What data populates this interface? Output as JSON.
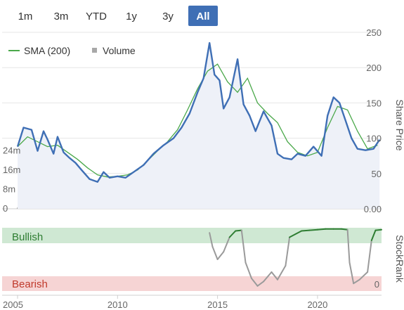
{
  "range_selector": {
    "buttons": [
      "1m",
      "3m",
      "YTD",
      "1y",
      "3y",
      "All"
    ],
    "active": "All"
  },
  "colors": {
    "price": "#3f6fb5",
    "sma": "#4aa84a",
    "volume": "#a8a8a8",
    "active_button": "#3f6fb5",
    "bullish_band": "#cfe8d3",
    "bearish_band": "#f6d4d4",
    "bullish_text": "#2e7d32",
    "bearish_text": "#c0392b"
  },
  "legend": {
    "sma_label": "SMA (200)",
    "volume_label": "Volume"
  },
  "stockrank": {
    "bullish_label": "Bullish",
    "bearish_label": "Bearish",
    "right_label": "0",
    "axis_title": "StockRank"
  },
  "chart_data": [
    {
      "type": "line",
      "title": "",
      "ylabel": "Share Price",
      "x_ticks": [
        "2005",
        "2010",
        "2015",
        "2020"
      ],
      "xlim": [
        2005.0,
        2023.2
      ],
      "y_ticks": [
        "0.00",
        "50",
        "100",
        "150",
        "200",
        "250"
      ],
      "ylim": [
        0,
        250
      ],
      "volume_ticks": [
        "0",
        "8m",
        "16m",
        "24m"
      ],
      "volume_lim": [
        0,
        32
      ],
      "series": [
        {
          "name": "",
          "x": [
            2005.0,
            2005.3,
            2005.7,
            2006.0,
            2006.3,
            2006.5,
            2006.8,
            2007.0,
            2007.3,
            2007.6,
            2007.9,
            2008.2,
            2008.6,
            2009.0,
            2009.3,
            2009.6,
            2010.0,
            2010.4,
            2010.8,
            2011.3,
            2011.8,
            2012.3,
            2012.8,
            2013.2,
            2013.6,
            2014.0,
            2014.3,
            2014.6,
            2014.85,
            2015.1,
            2015.3,
            2015.6,
            2016.0,
            2016.3,
            2016.6,
            2016.9,
            2017.3,
            2017.7,
            2018.0,
            2018.3,
            2018.7,
            2019.0,
            2019.4,
            2019.8,
            2020.2,
            2020.5,
            2020.8,
            2021.1,
            2021.4,
            2021.7,
            2022.0,
            2022.4,
            2022.8,
            2023.1
          ],
          "values": [
            88,
            115,
            112,
            82,
            110,
            98,
            78,
            102,
            80,
            72,
            65,
            55,
            42,
            38,
            52,
            44,
            46,
            44,
            52,
            62,
            78,
            90,
            100,
            115,
            135,
            165,
            185,
            235,
            190,
            182,
            142,
            158,
            212,
            148,
            132,
            110,
            138,
            118,
            78,
            72,
            70,
            78,
            75,
            88,
            75,
            132,
            158,
            150,
            125,
            100,
            85,
            83,
            85,
            98
          ]
        },
        {
          "name": "SMA (200)",
          "x": [
            2005.0,
            2005.5,
            2006.0,
            2006.5,
            2007.0,
            2007.5,
            2008.0,
            2008.5,
            2009.0,
            2009.5,
            2010.0,
            2010.5,
            2011.0,
            2011.5,
            2012.0,
            2012.5,
            2013.0,
            2013.5,
            2014.0,
            2014.5,
            2015.0,
            2015.5,
            2016.0,
            2016.5,
            2017.0,
            2017.5,
            2018.0,
            2018.5,
            2019.0,
            2019.5,
            2020.0,
            2020.5,
            2021.0,
            2021.5,
            2022.0,
            2022.5,
            2023.0
          ],
          "values": [
            88,
            102,
            95,
            88,
            90,
            80,
            70,
            58,
            48,
            45,
            46,
            48,
            55,
            68,
            82,
            95,
            112,
            140,
            170,
            195,
            205,
            180,
            165,
            185,
            150,
            135,
            122,
            95,
            80,
            75,
            80,
            115,
            145,
            140,
            110,
            85,
            90
          ]
        },
        {
          "name": "Volume",
          "x": [
            2005.0,
            2006.0,
            2007.0,
            2008.0,
            2009.0,
            2010.0,
            2011.0,
            2012.0,
            2013.0,
            2014.0,
            2015.0,
            2016.0,
            2017.0,
            2018.0,
            2019.0,
            2020.0,
            2021.0,
            2022.0,
            2023.0
          ],
          "values": [
            0.5,
            0.5,
            0.4,
            0.4,
            0.4,
            0.3,
            0.3,
            0.3,
            0.3,
            0.3,
            0.3,
            0.3,
            0.3,
            0.3,
            0.3,
            0.3,
            0.4,
            0.4,
            0.4
          ]
        }
      ]
    },
    {
      "type": "line",
      "title": "",
      "ylabel": "StockRank",
      "series": [
        {
          "name": "",
          "x": [
            2014.6,
            2014.75,
            2015.0,
            2015.3,
            2015.6,
            2015.9,
            2016.2,
            2016.4,
            2016.7,
            2017.0,
            2017.3,
            2017.7,
            2018.0,
            2018.4,
            2018.6,
            2018.9,
            2019.2,
            2019.6,
            2020.0,
            2020.4,
            2020.8,
            2021.2,
            2021.5,
            2021.6,
            2021.8,
            2022.1,
            2022.5,
            2022.7,
            2022.9,
            2023.2
          ],
          "values": [
            92,
            70,
            50,
            62,
            85,
            95,
            96,
            45,
            20,
            8,
            15,
            30,
            18,
            40,
            85,
            90,
            95,
            96,
            97,
            98,
            98,
            98,
            97,
            45,
            12,
            18,
            30,
            80,
            96,
            97
          ],
          "bullish_threshold": 80
        }
      ]
    }
  ]
}
